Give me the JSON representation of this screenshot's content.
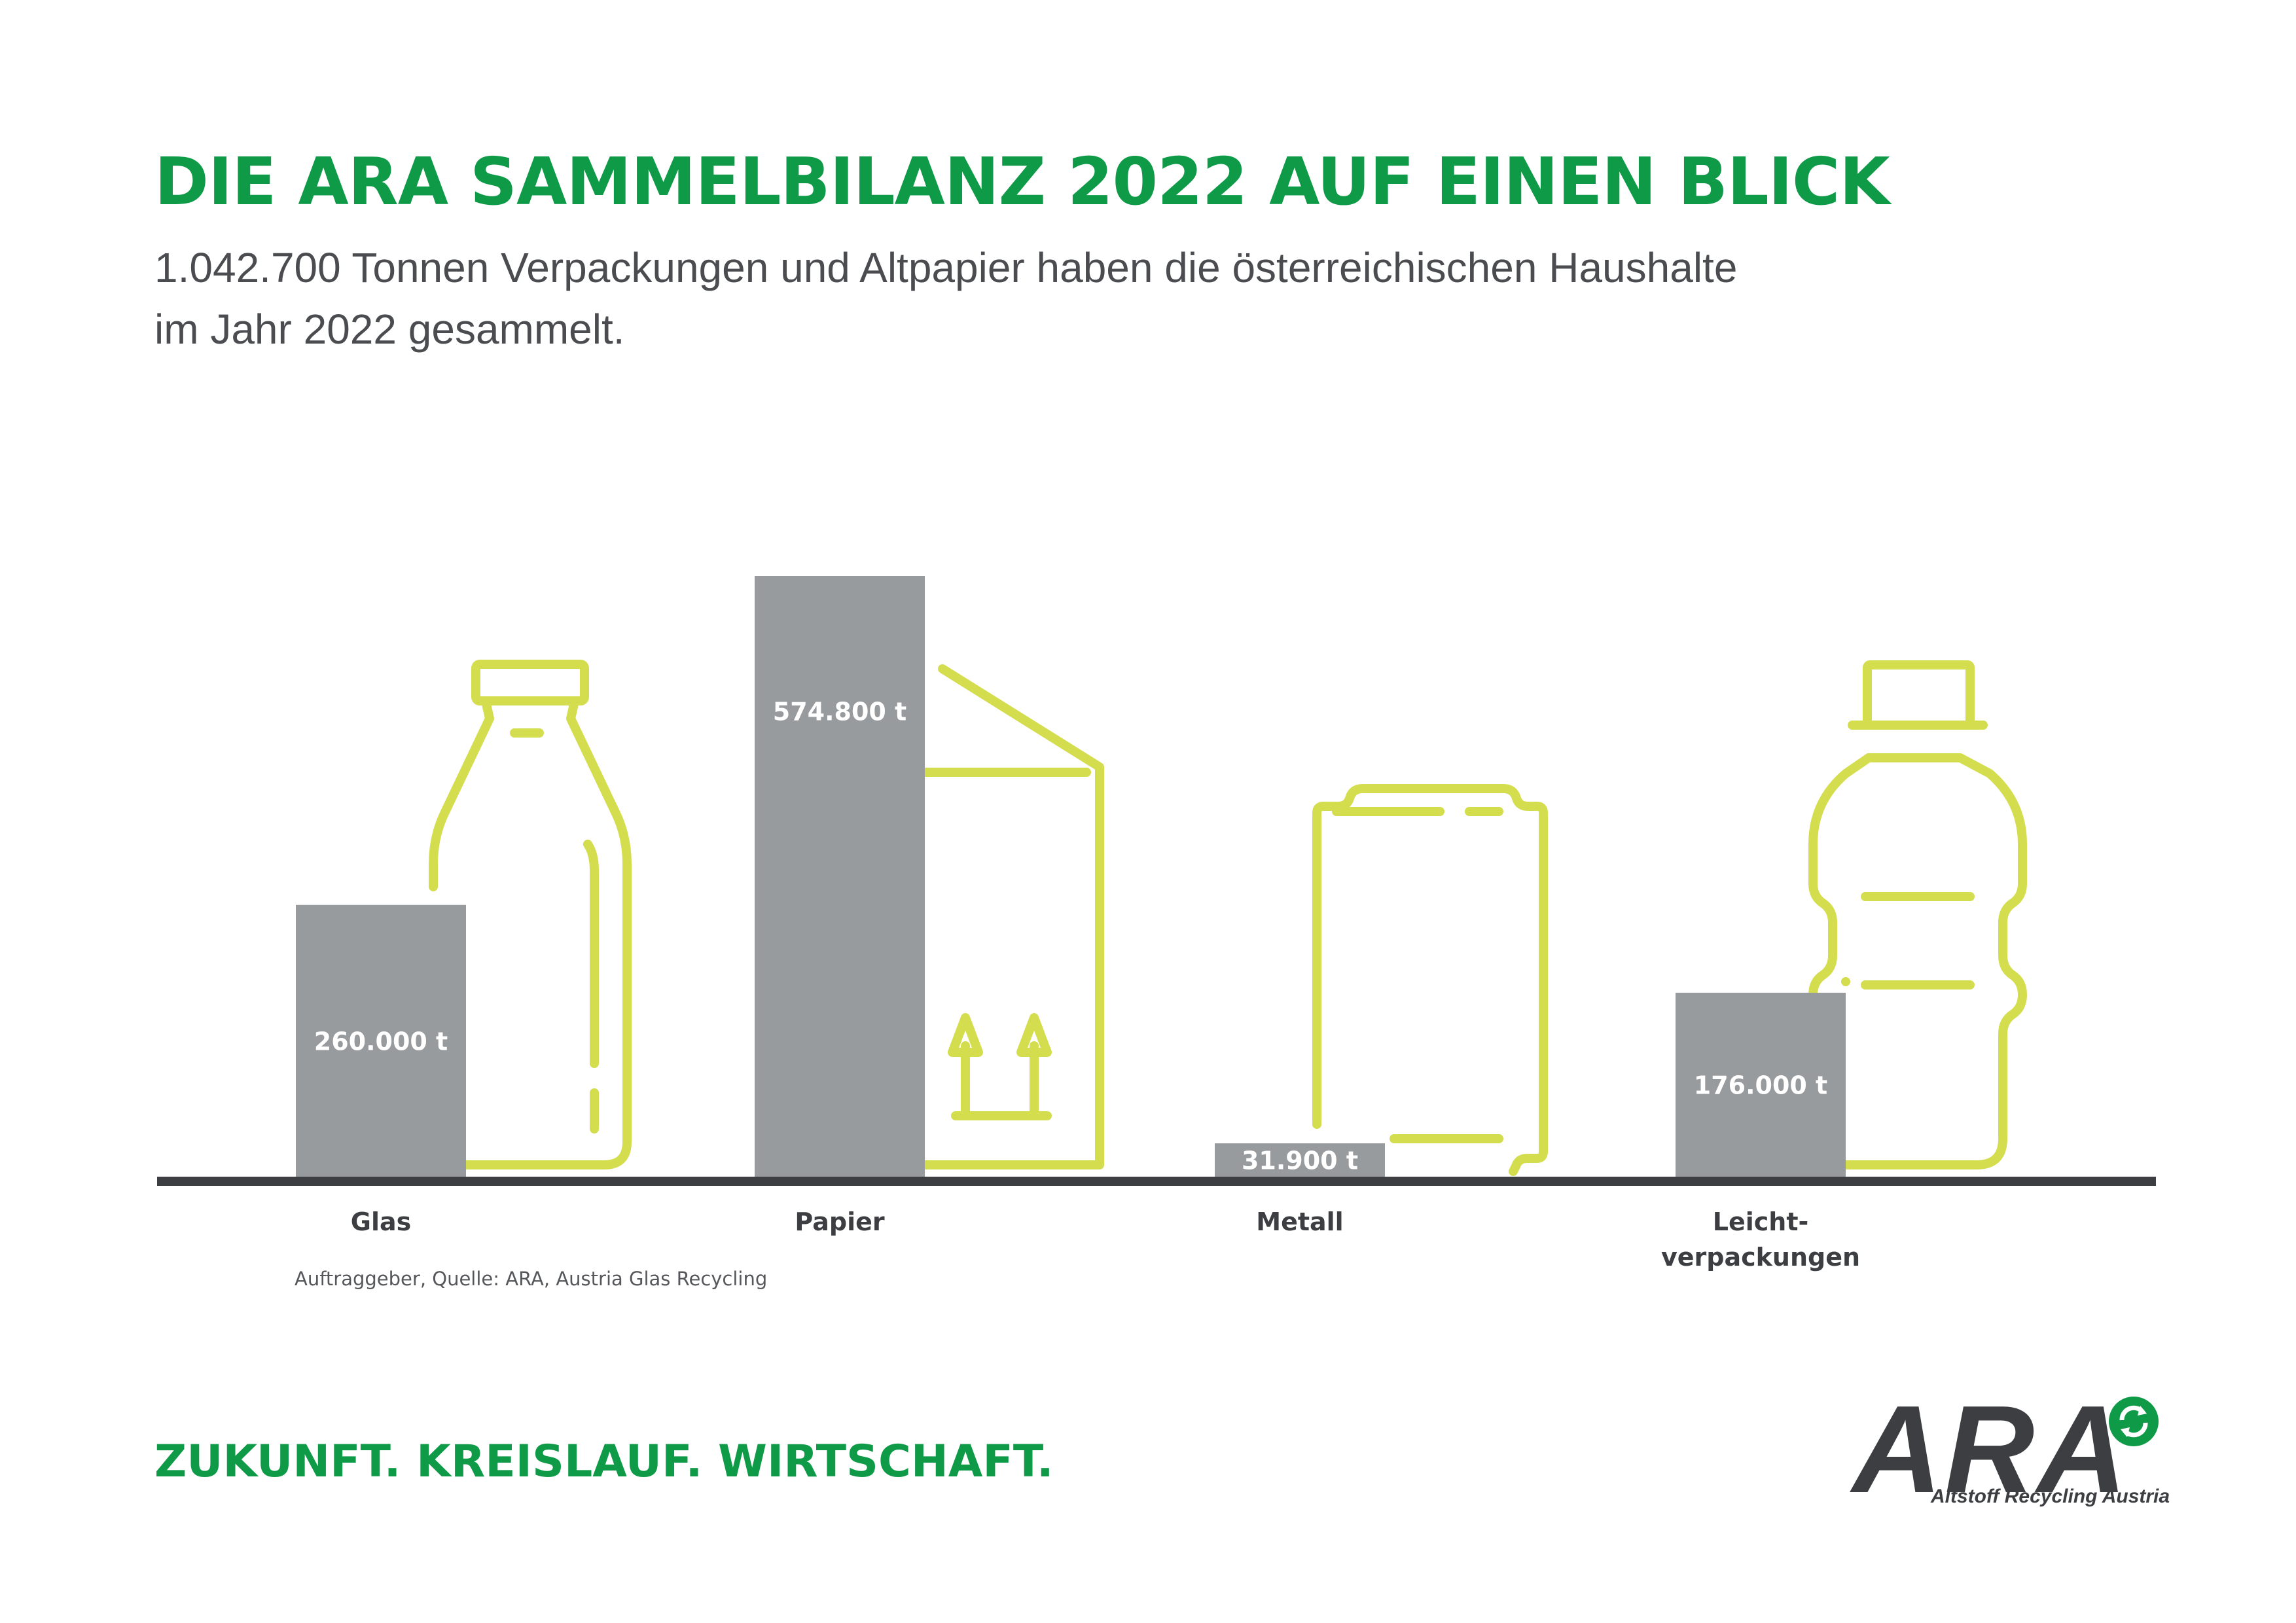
{
  "header": {
    "title": "DIE ARA SAMMELBILANZ 2022 AUF EINEN BLICK",
    "subtitle_line1": "1.042.700 Tonnen Verpackungen und Altpapier haben die österreichischen Haushalte",
    "subtitle_line2": "im Jahr 2022 gesammelt."
  },
  "colors": {
    "title_green": "#0f9a48",
    "bar_gray": "#989b9d",
    "icon_lime": "#d4dd4e",
    "baseline": "#3c3e42"
  },
  "chart_data": {
    "type": "bar",
    "title": "DIE ARA SAMMELBILANZ 2022 AUF EINEN BLICK",
    "categories": [
      "Glas",
      "Papier",
      "Metall",
      "Leicht-verpackungen"
    ],
    "category_lines": [
      [
        "Glas"
      ],
      [
        "Papier"
      ],
      [
        "Metall"
      ],
      [
        "Leicht-",
        "verpackungen"
      ]
    ],
    "values": [
      260000,
      574800,
      31900,
      176000
    ],
    "value_labels": [
      "260.000 t",
      "574.800 t",
      "31.900 t",
      "176.000 t"
    ],
    "unit": "t",
    "icons": [
      "glass-bottle-icon",
      "paper-carton-icon",
      "metal-can-icon",
      "plastic-bottle-icon"
    ],
    "ylim": [
      0,
      574800
    ],
    "grid": false,
    "legend": "none",
    "xlabel": "",
    "ylabel": ""
  },
  "footer": {
    "source": "Auftraggeber, Quelle: ARA, Austria Glas Recycling",
    "slogan": "ZUKUNFT. KREISLAUF. WIRTSCHAFT.",
    "logo_word": "ARA",
    "logo_tagline": "Altstoff Recycling Austria",
    "logo_icon": "green-dot-recycling-icon"
  }
}
